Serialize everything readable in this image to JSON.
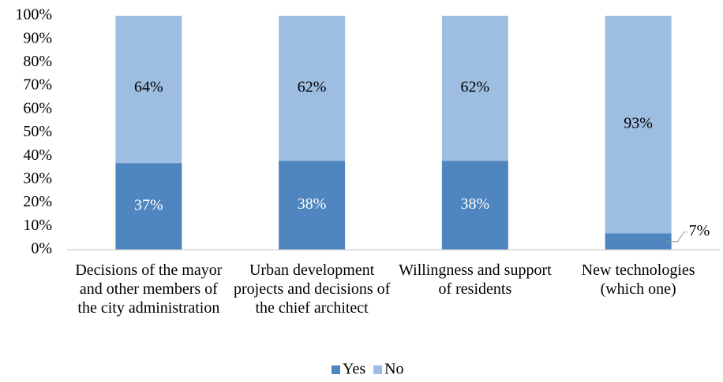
{
  "chart_data": {
    "type": "stacked_bar",
    "categories": [
      "Decisions of the mayor and other members of the city administration",
      "Urban development projects and decisions of the chief architect",
      "Willingness and support of residents",
      "New technologies (which one)"
    ],
    "series": [
      {
        "name": "Yes",
        "color": "#4f86bf",
        "values": [
          37,
          38,
          38,
          7
        ],
        "value_labels": [
          "37%",
          "38%",
          "38%",
          "7%"
        ]
      },
      {
        "name": "No",
        "color": "#9dbde1",
        "values": [
          64,
          62,
          62,
          93
        ],
        "value_labels": [
          "64%",
          "62%",
          "62%",
          "93%"
        ]
      }
    ],
    "ylim": [
      0,
      100
    ],
    "yticks": [
      {
        "value": 0,
        "label": "0%"
      },
      {
        "value": 10,
        "label": "10%"
      },
      {
        "value": 20,
        "label": "20%"
      },
      {
        "value": 30,
        "label": "30%"
      },
      {
        "value": 40,
        "label": "40%"
      },
      {
        "value": 50,
        "label": "50%"
      },
      {
        "value": 60,
        "label": "60%"
      },
      {
        "value": 70,
        "label": "70%"
      },
      {
        "value": 80,
        "label": "80%"
      },
      {
        "value": 90,
        "label": "90%"
      },
      {
        "value": 100,
        "label": "100%"
      }
    ],
    "legend": "bottom"
  }
}
